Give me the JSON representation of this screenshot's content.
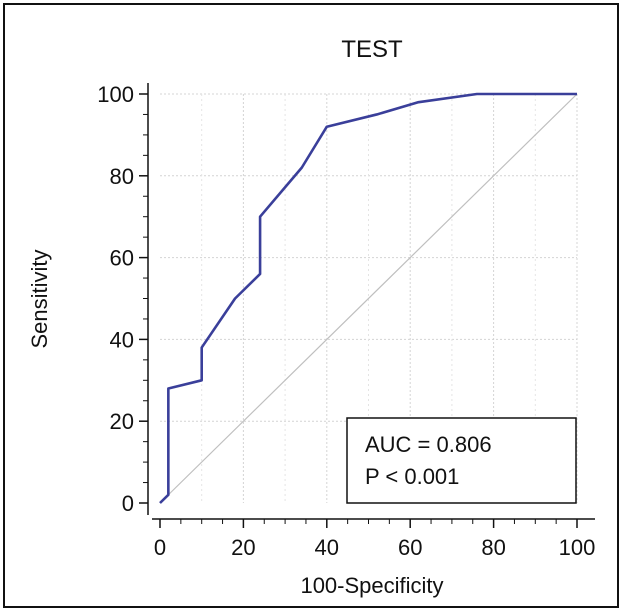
{
  "chart_data": {
    "type": "line",
    "title": "TEST",
    "xlabel": "100-Specificity",
    "ylabel": "Sensitivity",
    "xlim": [
      0,
      100
    ],
    "ylim": [
      0,
      100
    ],
    "xticks": [
      0,
      20,
      40,
      60,
      80,
      100
    ],
    "yticks": [
      0,
      20,
      40,
      60,
      80,
      100
    ],
    "grid": true,
    "series": [
      {
        "kind": "roc-curve",
        "color": "#3a3f9a",
        "x": [
          0,
          2,
          2,
          10,
          10,
          18,
          24,
          24,
          34,
          40,
          52,
          62,
          76,
          100
        ],
        "y": [
          0,
          2,
          28,
          30,
          38,
          50,
          56,
          70,
          82,
          92,
          95,
          98,
          100,
          100
        ]
      },
      {
        "kind": "reference-diagonal",
        "color": "#bfbfbf",
        "x": [
          0,
          100
        ],
        "y": [
          0,
          100
        ]
      }
    ],
    "annotation": {
      "lines": [
        "AUC = 0.806",
        "P < 0.001"
      ],
      "position": "bottom-right"
    }
  }
}
